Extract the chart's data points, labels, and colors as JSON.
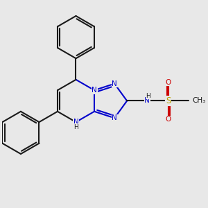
{
  "bg_color": "#e8e8e8",
  "bond_color": "#1a1a1a",
  "n_color": "#0000cc",
  "s_color": "#b8a000",
  "o_color": "#cc0000",
  "lw": 1.5,
  "fs": 7.5,
  "xlim": [
    0,
    10
  ],
  "ylim": [
    0,
    10
  ]
}
